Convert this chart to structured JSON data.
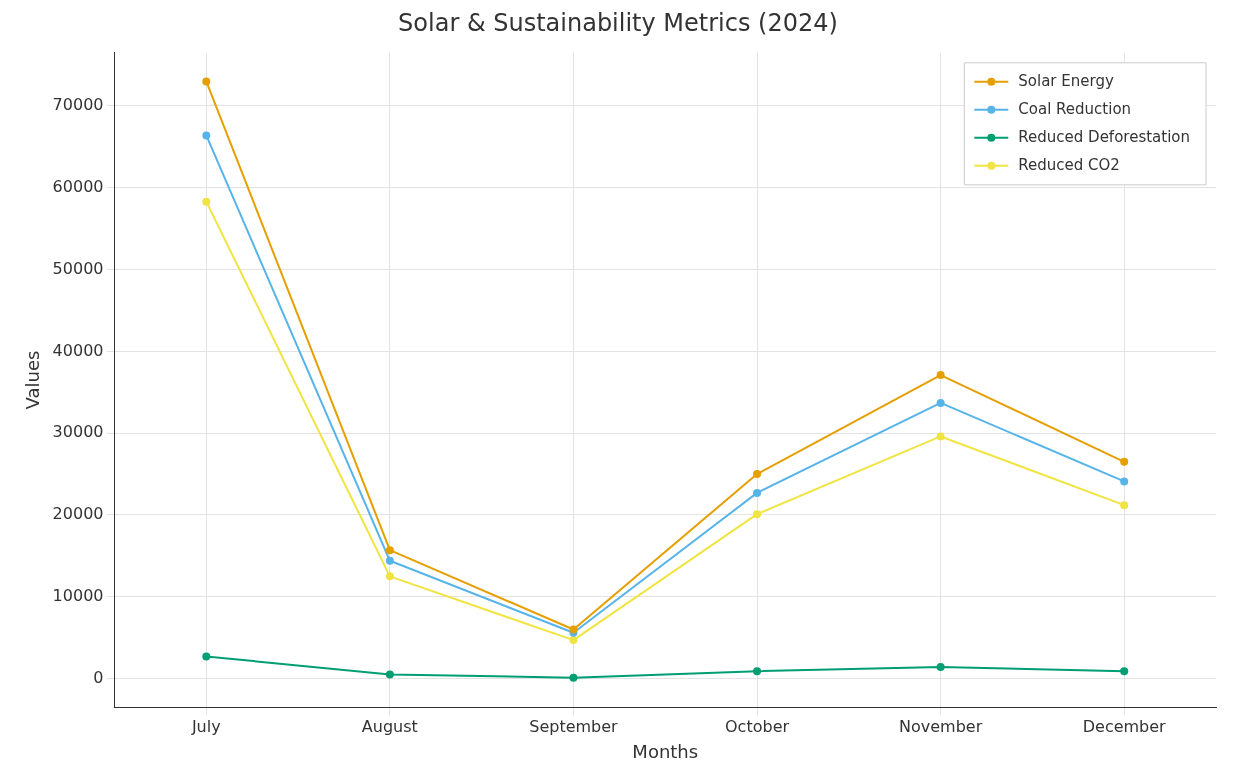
{
  "chart_data": {
    "type": "line",
    "title": "Solar & Sustainability Metrics (2024)",
    "xlabel": "Months",
    "ylabel": "Values",
    "categories": [
      "July",
      "August",
      "September",
      "October",
      "November",
      "December"
    ],
    "series": [
      {
        "name": "Solar Energy",
        "color": "#e69f00",
        "values": [
          73000,
          15700,
          6000,
          25000,
          37100,
          26500
        ]
      },
      {
        "name": "Coal Reduction",
        "color": "#56b4e9",
        "values": [
          66400,
          14400,
          5600,
          22700,
          33700,
          24100
        ]
      },
      {
        "name": "Reduced Deforestation",
        "color": "#009e73",
        "values": [
          2700,
          500,
          100,
          900,
          1400,
          900
        ]
      },
      {
        "name": "Reduced CO2",
        "color": "#f0e442",
        "values": [
          58300,
          12500,
          4700,
          20100,
          29600,
          21200
        ]
      }
    ],
    "ylim": [
      -3500,
      76500
    ],
    "yticks": [
      0,
      10000,
      20000,
      30000,
      40000,
      50000,
      60000,
      70000
    ],
    "grid": true,
    "legend": "top right",
    "marker": "circle",
    "line_style": "solid"
  }
}
